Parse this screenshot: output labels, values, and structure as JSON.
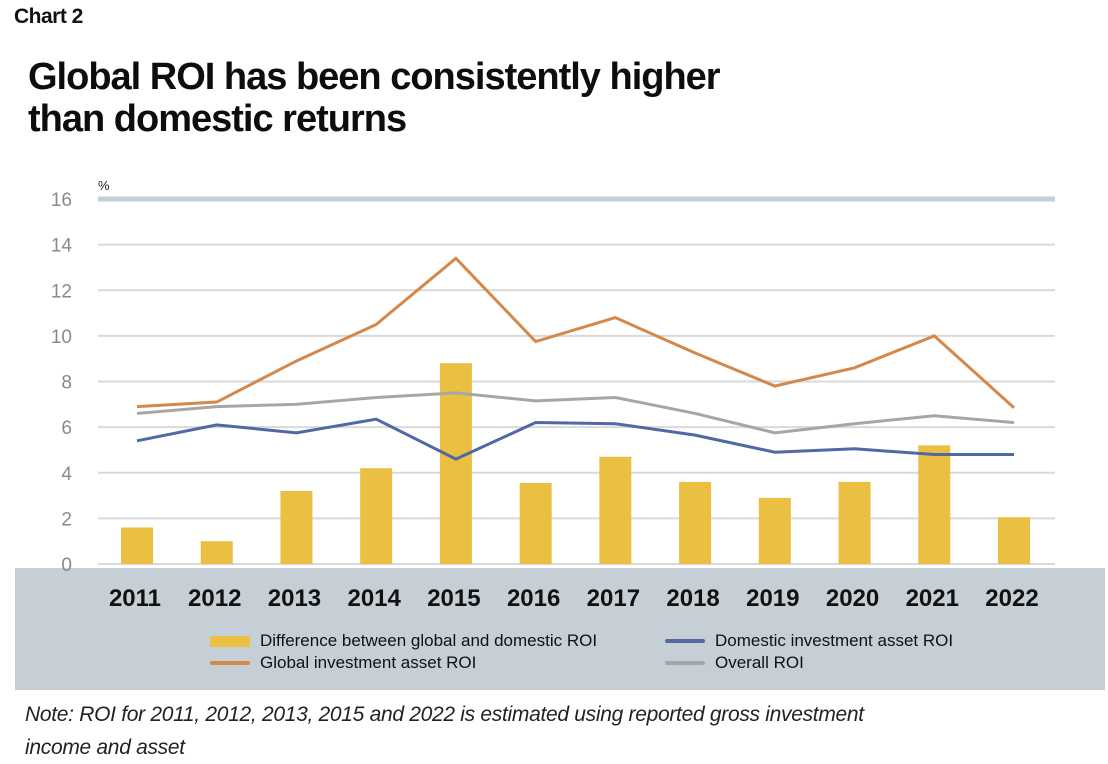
{
  "header": {
    "chart_label": "Chart 2",
    "title_line1": "Global ROI has been consistently higher",
    "title_line2": "than domestic returns"
  },
  "note": {
    "line1": "Note: ROI for 2011, 2012, 2013, 2015 and 2022 is estimated using reported gross investment",
    "line2": "income and asset"
  },
  "colors": {
    "difference": "#ebbf42",
    "global": "#d4884a",
    "domestic": "#5068a4",
    "overall": "#a6a6a6",
    "grid": "#d9d9d9",
    "top_grid": "#c5cfd5",
    "panel": "#c5cfd5"
  },
  "chart_data": {
    "type": "bar+line",
    "title": "Global ROI has been consistently higher than domestic returns",
    "ylabel": "%",
    "xlabel": "",
    "ylim": [
      0,
      16
    ],
    "yticks": [
      0,
      2,
      4,
      6,
      8,
      10,
      12,
      14,
      16
    ],
    "grid": true,
    "legend_position": "bottom",
    "categories": [
      "2011",
      "2012",
      "2013",
      "2014",
      "2015",
      "2016",
      "2017",
      "2018",
      "2019",
      "2020",
      "2021",
      "2022"
    ],
    "series": [
      {
        "name": "Difference between global and domestic ROI",
        "type": "bar",
        "color": "#ebbf42",
        "values": [
          1.6,
          1.0,
          3.2,
          4.2,
          8.8,
          3.55,
          4.7,
          3.6,
          2.9,
          3.6,
          5.2,
          2.05
        ]
      },
      {
        "name": "Global investment asset ROI",
        "type": "line",
        "color": "#d4884a",
        "values": [
          6.9,
          7.1,
          8.9,
          10.5,
          13.4,
          9.75,
          10.8,
          9.25,
          7.8,
          8.6,
          10.0,
          6.85
        ]
      },
      {
        "name": "Domestic investment asset ROI",
        "type": "line",
        "color": "#5068a4",
        "values": [
          5.4,
          6.1,
          5.75,
          6.35,
          4.6,
          6.2,
          6.15,
          5.65,
          4.9,
          5.05,
          4.8,
          4.8
        ]
      },
      {
        "name": "Overall ROI",
        "type": "line",
        "color": "#a6a6a6",
        "values": [
          6.6,
          6.9,
          7.0,
          7.3,
          7.5,
          7.15,
          7.3,
          6.6,
          5.75,
          6.15,
          6.5,
          6.2
        ]
      }
    ],
    "legend": [
      {
        "label": "Difference between global and domestic ROI",
        "kind": "bar",
        "color": "#ebbf42"
      },
      {
        "label": "Global investment asset ROI",
        "kind": "line",
        "color": "#d4884a"
      },
      {
        "label": "Domestic investment asset ROI",
        "kind": "line",
        "color": "#5068a4"
      },
      {
        "label": "Overall ROI",
        "kind": "line",
        "color": "#a6a6a6"
      }
    ]
  }
}
